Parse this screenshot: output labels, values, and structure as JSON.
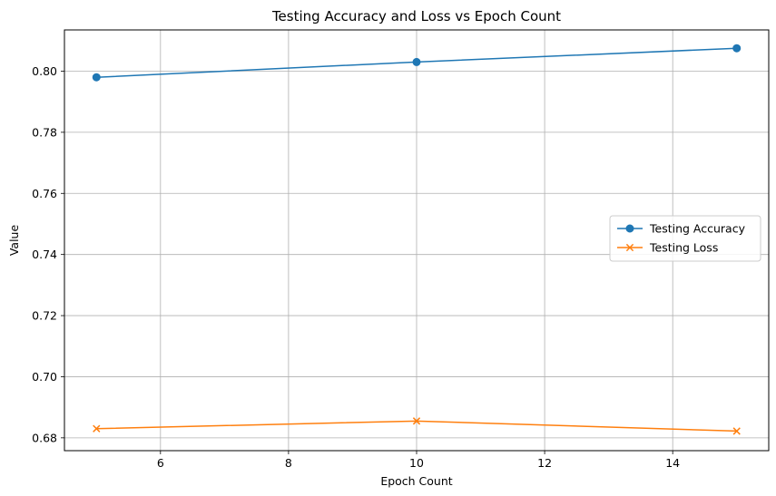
{
  "chart_data": {
    "type": "line",
    "title": "Testing Accuracy and Loss vs Epoch Count",
    "xlabel": "Epoch Count",
    "ylabel": "Value",
    "x": [
      5,
      10,
      15
    ],
    "xlim": [
      4.5,
      15.5
    ],
    "ylim": [
      0.6758,
      0.8135
    ],
    "xticks": [
      6,
      8,
      10,
      12,
      14
    ],
    "yticks": [
      0.68,
      0.7,
      0.72,
      0.74,
      0.76,
      0.78,
      0.8
    ],
    "xtick_labels": [
      "6",
      "8",
      "10",
      "12",
      "14"
    ],
    "ytick_labels": [
      "0.68",
      "0.70",
      "0.72",
      "0.74",
      "0.76",
      "0.78",
      "0.80"
    ],
    "grid": true,
    "legend_position": "center-right",
    "series": [
      {
        "name": "Testing Accuracy",
        "values": [
          0.798,
          0.803,
          0.8075
        ],
        "color": "#1f77b4",
        "marker": "circle"
      },
      {
        "name": "Testing Loss",
        "values": [
          0.683,
          0.6855,
          0.6822
        ],
        "color": "#ff7f0e",
        "marker": "x"
      }
    ]
  }
}
